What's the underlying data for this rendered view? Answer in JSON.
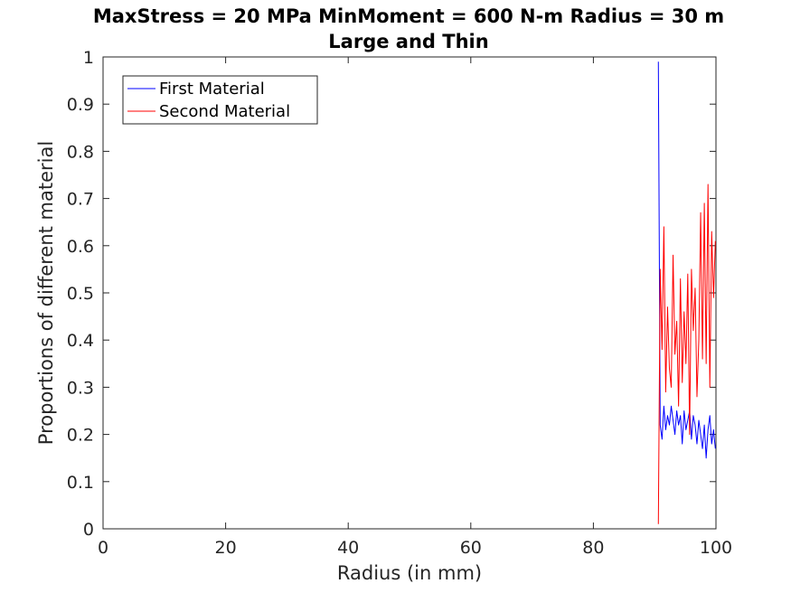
{
  "chart_data": {
    "type": "line",
    "title": [
      "MaxStress = 20 MPa MinMoment = 600 N-m Radius = 30 m",
      "Large and Thin"
    ],
    "xlabel": "Radius (in mm)",
    "ylabel": "Proportions of different material",
    "xlim": [
      0,
      100
    ],
    "ylim": [
      0,
      1
    ],
    "xticks": [
      0,
      20,
      40,
      60,
      80,
      100
    ],
    "xtick_labels": [
      "0",
      "20",
      "40",
      "60",
      "80",
      "100"
    ],
    "yticks": [
      0,
      0.1,
      0.2,
      0.3,
      0.4,
      0.5,
      0.6,
      0.7,
      0.8,
      0.9,
      1
    ],
    "ytick_labels": [
      "0",
      "0.1",
      "0.2",
      "0.3",
      "0.4",
      "0.5",
      "0.6",
      "0.7",
      "0.8",
      "0.9",
      "1"
    ],
    "grid": false,
    "legend_position": "top-left",
    "x": [
      90.6,
      90.9,
      91.2,
      91.5,
      91.8,
      92.1,
      92.4,
      92.7,
      93.0,
      93.3,
      93.6,
      93.9,
      94.2,
      94.5,
      94.8,
      95.1,
      95.4,
      95.7,
      96.0,
      96.3,
      96.6,
      96.9,
      97.2,
      97.5,
      97.8,
      98.1,
      98.4,
      98.7,
      99.0,
      99.3,
      99.6,
      99.9
    ],
    "series": [
      {
        "name": "First Material",
        "color": "#0000ff",
        "values": [
          0.99,
          0.22,
          0.19,
          0.26,
          0.21,
          0.24,
          0.22,
          0.26,
          0.23,
          0.2,
          0.25,
          0.22,
          0.24,
          0.18,
          0.25,
          0.21,
          0.23,
          0.25,
          0.19,
          0.24,
          0.22,
          0.18,
          0.23,
          0.2,
          0.17,
          0.22,
          0.15,
          0.21,
          0.24,
          0.18,
          0.21,
          0.17
        ]
      },
      {
        "name": "Second Material",
        "color": "#ff0000",
        "values": [
          0.01,
          0.55,
          0.38,
          0.64,
          0.29,
          0.47,
          0.34,
          0.3,
          0.58,
          0.37,
          0.44,
          0.26,
          0.53,
          0.31,
          0.46,
          0.35,
          0.54,
          0.2,
          0.55,
          0.42,
          0.51,
          0.28,
          0.4,
          0.67,
          0.36,
          0.69,
          0.35,
          0.73,
          0.3,
          0.63,
          0.49,
          0.61
        ]
      }
    ]
  }
}
